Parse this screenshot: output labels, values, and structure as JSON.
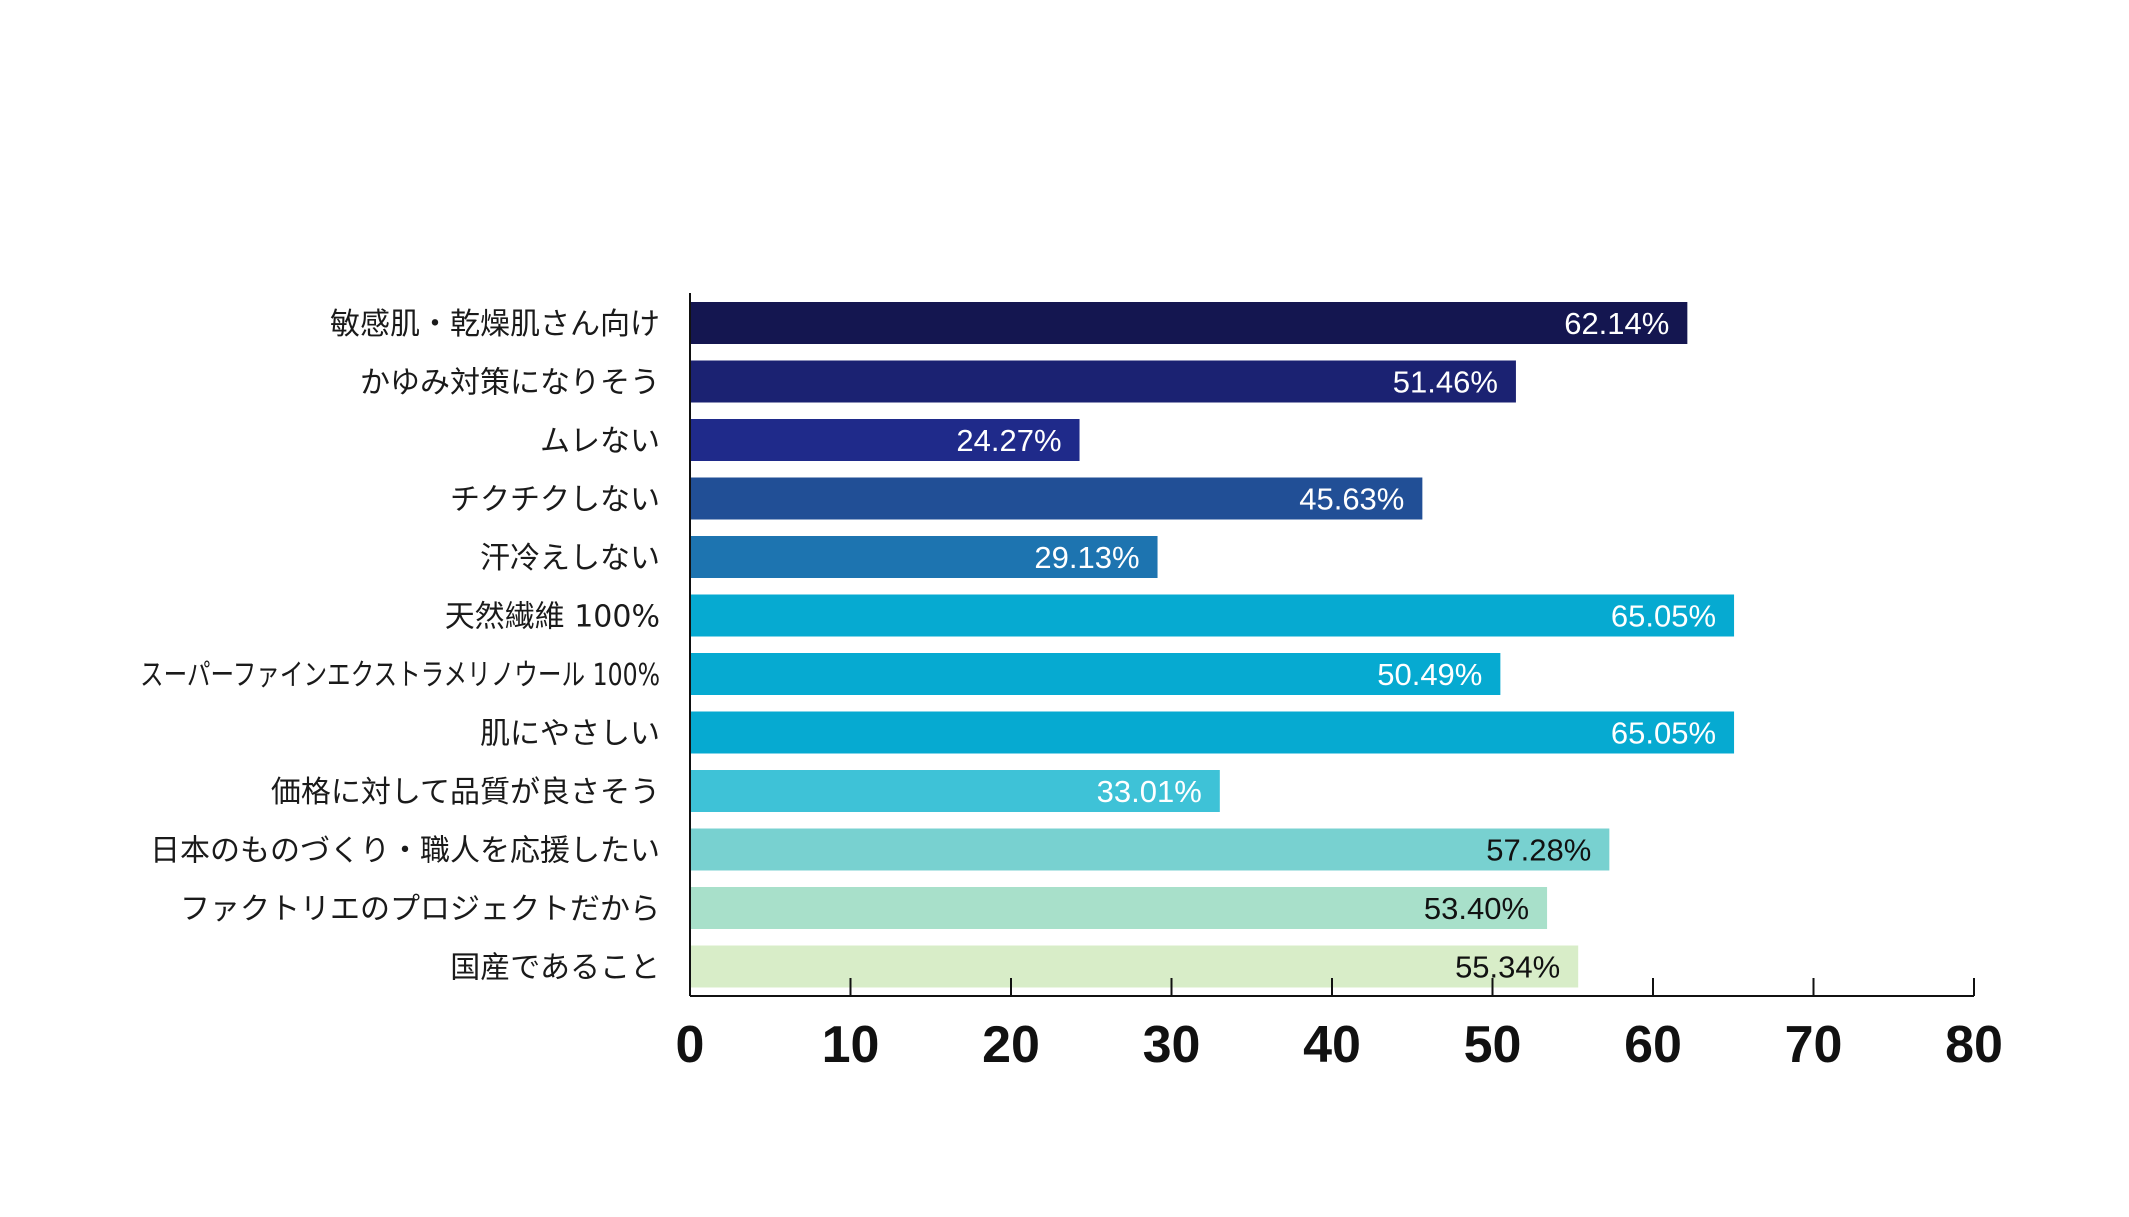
{
  "chart_data": {
    "type": "bar",
    "orientation": "horizontal",
    "title": "",
    "xlabel": "",
    "ylabel": "",
    "xlim": [
      0,
      80
    ],
    "x_ticks": [
      0,
      10,
      20,
      30,
      40,
      50,
      60,
      70,
      80
    ],
    "grid": false,
    "categories": [
      "敏感肌・乾燥肌さん向け",
      "かゆみ対策になりそう",
      "ムレない",
      "チクチクしない",
      "汗冷えしない",
      "天然繊維 100%",
      "スーパーファインエクストラメリノウール 100%",
      "肌にやさしい",
      "価格に対して品質が良さそう",
      "日本のものづくり・職人を応援したい",
      "ファクトリエのプロジェクトだから",
      "国産であること"
    ],
    "values": [
      62.14,
      51.46,
      24.27,
      45.63,
      29.13,
      65.05,
      50.49,
      65.05,
      33.01,
      57.28,
      53.4,
      55.34
    ],
    "data_labels": [
      "62.14%",
      "51.46%",
      "24.27%",
      "45.63%",
      "29.13%",
      "65.05%",
      "50.49%",
      "65.05%",
      "33.01%",
      "57.28%",
      "53.40%",
      "55.34%"
    ],
    "bar_colors": [
      "#141650",
      "#1b2272",
      "#1f2a8a",
      "#214f96",
      "#1d74b0",
      "#06aad1",
      "#06aad1",
      "#06aad1",
      "#3ec2d7",
      "#78d1d0",
      "#a8e0ca",
      "#d8edc8"
    ],
    "label_colors": [
      "#ffffff",
      "#ffffff",
      "#ffffff",
      "#ffffff",
      "#ffffff",
      "#ffffff",
      "#ffffff",
      "#ffffff",
      "#ffffff",
      "#111111",
      "#111111",
      "#111111"
    ]
  }
}
